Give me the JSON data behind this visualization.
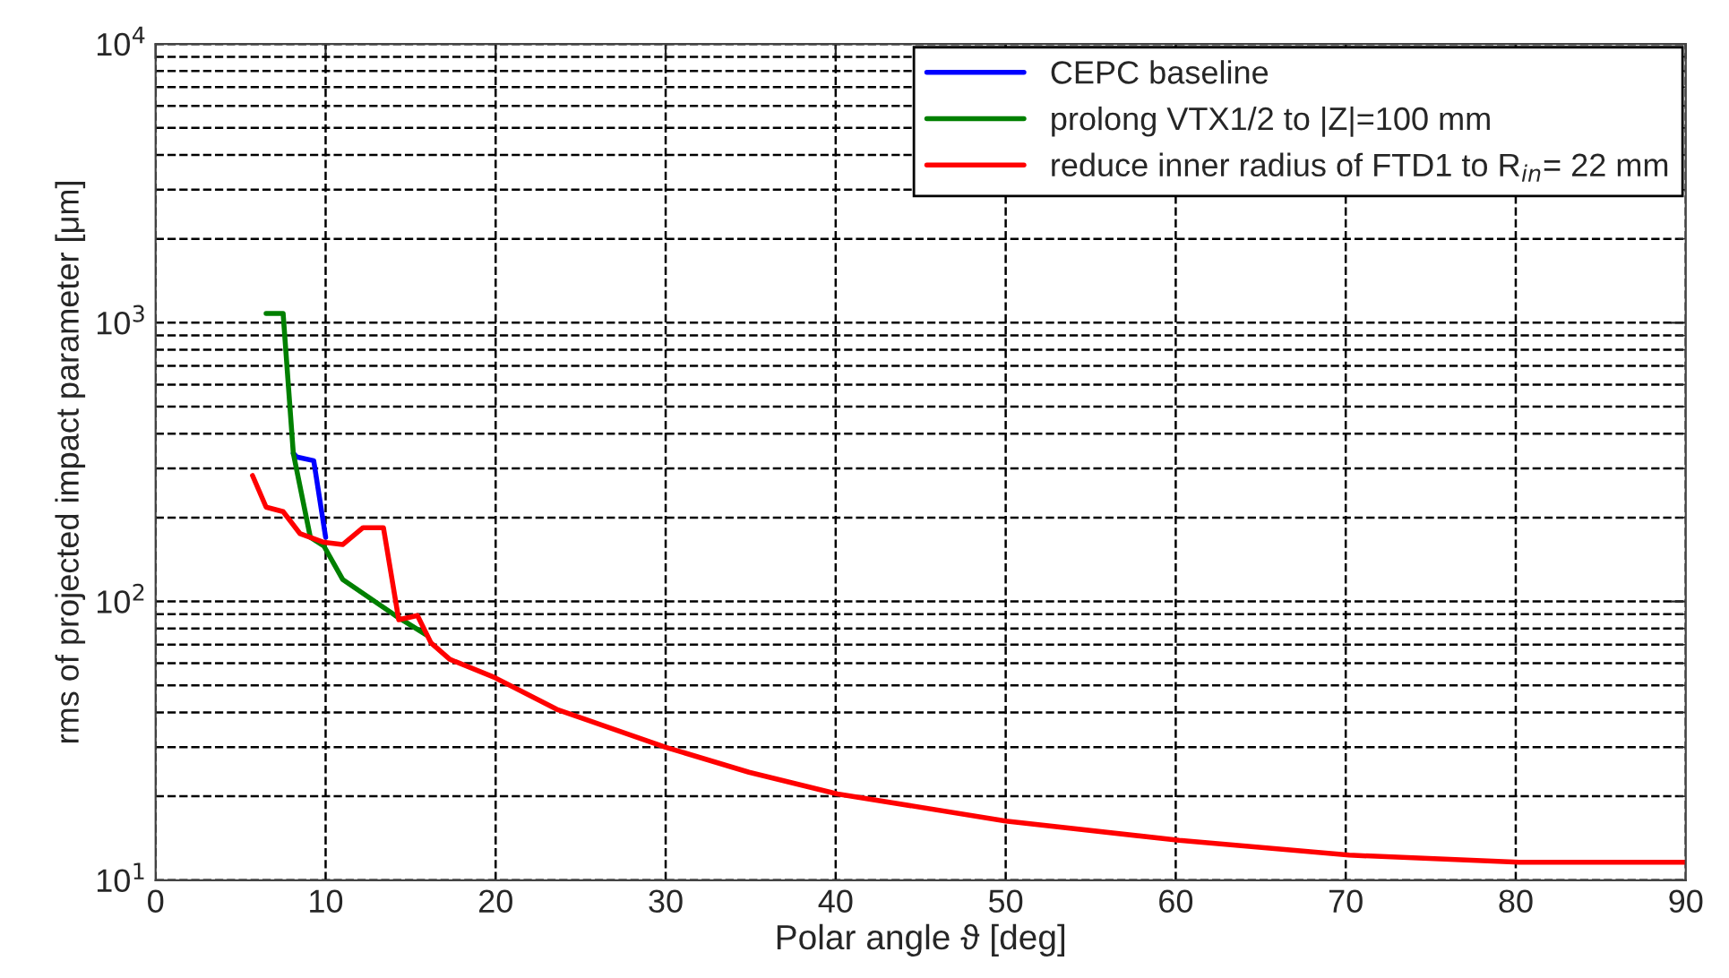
{
  "chart_data": {
    "type": "line",
    "xlabel": "Polar angle ϑ [deg]",
    "ylabel": "rms of projected impact parameter [μm]",
    "log": "y",
    "grid": true,
    "legend": "top right",
    "line_style": "solid",
    "marker": "none",
    "xlim": [
      0,
      90
    ],
    "xticks": [
      0,
      10,
      20,
      30,
      40,
      50,
      60,
      70,
      80,
      90
    ],
    "ylim": [
      10,
      10000
    ],
    "yticks": [
      {
        "value": 10,
        "label": "10$^{1}$"
      },
      {
        "value": 100,
        "label": "10$^{2}$"
      },
      {
        "value": 1000,
        "label": "10$^{3}$"
      },
      {
        "value": 10000,
        "label": "10$^{4}$"
      }
    ],
    "series": [
      {
        "name": "CEPC baseline",
        "color": "#0000ff",
        "x": [
          8.1,
          8.3,
          9.3,
          10.0
        ],
        "values": [
          340,
          330,
          320,
          170
        ]
      },
      {
        "name": "prolong VTX1/2 to |Z|=100 mm",
        "color": "#008000",
        "x": [
          6.5,
          7.5,
          8.1,
          9.1,
          9.9,
          11.0,
          14.1,
          15.9
        ],
        "values": [
          1080,
          1080,
          340,
          170,
          158,
          120,
          89,
          76
        ]
      },
      {
        "name": "reduce inner radius of FTD1 to R$_{in}$= 22 mm",
        "color": "#ff0000",
        "x": [
          5.7,
          6.5,
          7.5,
          8.5,
          9.9,
          11.0,
          12.2,
          13.4,
          14.3,
          15.4,
          16.2,
          17.3,
          19.9,
          23.6,
          30.0,
          34.9,
          40.1,
          50.0,
          60.2,
          70.2,
          80.2,
          90.0
        ],
        "values": [
          283,
          218,
          210,
          175,
          163,
          160,
          184,
          184,
          86,
          89,
          71,
          62,
          53.5,
          41,
          30,
          24.4,
          20.4,
          16.3,
          13.9,
          12.3,
          11.6,
          11.6
        ]
      }
    ]
  }
}
